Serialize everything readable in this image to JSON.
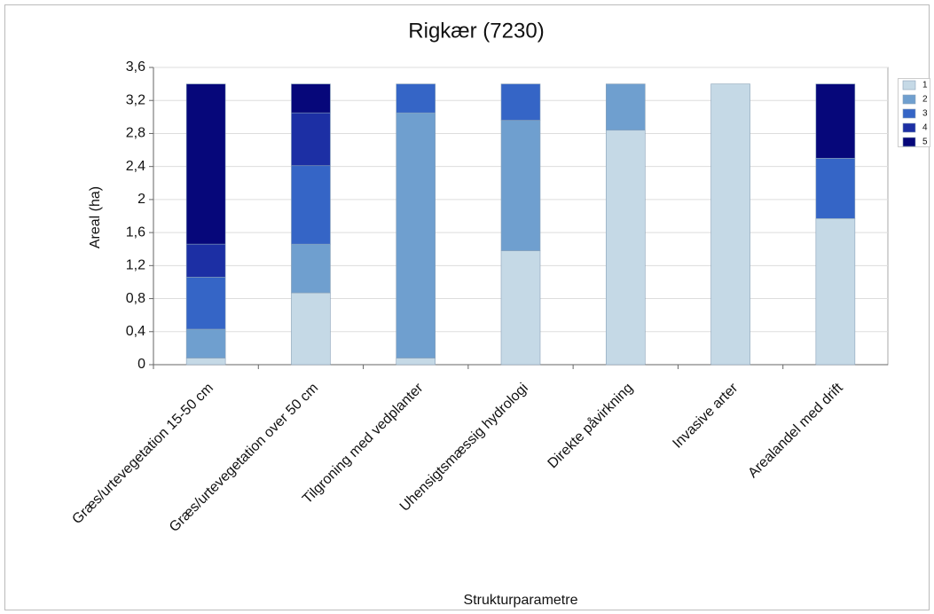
{
  "chart_data": {
    "type": "stacked_bar",
    "title": "Rigkær (7230)",
    "y_label": "Areal (ha)",
    "x_label": "Strukturparametre",
    "categories": [
      "Græs/urtevegetation 15-50 cm",
      "Græs/urtevegetation over 50 cm",
      "Tilgroning med vedplanter",
      "Uhensigtsmæssig hydrologi",
      "Direkte påvirkning",
      "Invasive arter",
      "Arealandel med drift"
    ],
    "series": [
      {
        "name": "1",
        "color": "#c5d9e6",
        "values": [
          0.08,
          0.87,
          0.08,
          1.38,
          2.84,
          3.4,
          1.77
        ]
      },
      {
        "name": "2",
        "color": "#6f9fcf",
        "values": [
          0.35,
          0.59,
          2.97,
          1.58,
          0.56,
          0,
          0
        ]
      },
      {
        "name": "3",
        "color": "#3565c6",
        "values": [
          0.63,
          0.95,
          0.35,
          0.44,
          0,
          0,
          0.73
        ]
      },
      {
        "name": "4",
        "color": "#1c2fa4",
        "values": [
          0.4,
          0.64,
          0,
          0,
          0,
          0,
          0
        ]
      },
      {
        "name": "5",
        "color": "#06077a",
        "values": [
          1.94,
          0.35,
          0,
          0,
          0,
          0,
          0.9
        ]
      }
    ],
    "ylim": [
      0,
      3.6
    ],
    "yticks": [
      0,
      {
        "value": 0.4,
        "label": "0,4"
      },
      {
        "value": 0.8,
        "label": "0,8"
      },
      {
        "value": 1.2,
        "label": "1,2"
      },
      {
        "value": 1.6,
        "label": "1,6"
      },
      2,
      {
        "value": 2.4,
        "label": "2,4"
      },
      {
        "value": 2.8,
        "label": "2,8"
      },
      {
        "value": 3.2,
        "label": "3,2"
      },
      {
        "value": 3.6,
        "label": "3,6"
      }
    ],
    "grid": true,
    "legend": "right"
  }
}
